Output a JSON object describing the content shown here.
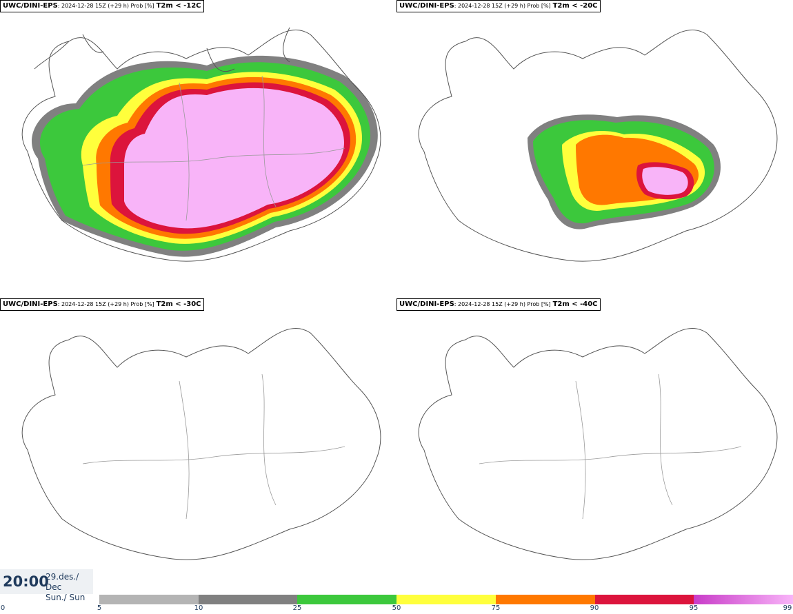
{
  "panels": [
    {
      "model": "UWC/DINI-EPS",
      "meta": ": 2024-12-28 15Z (+29 h) Prob [%]",
      "variable": "T2m < -12C"
    },
    {
      "model": "UWC/DINI-EPS",
      "meta": ": 2024-12-28 15Z (+29 h) Prob [%]",
      "variable": "T2m < -20C"
    },
    {
      "model": "UWC/DINI-EPS",
      "meta": ": 2024-12-28 15Z (+29 h) Prob [%]",
      "variable": "T2m < -30C"
    },
    {
      "model": "UWC/DINI-EPS",
      "meta": ": 2024-12-28 15Z (+29 h) Prob [%]",
      "variable": "T2m < -40C"
    }
  ],
  "valid_time": {
    "time": "20:00",
    "date_line1": "29.des./ Dec",
    "date_line2": "Sun./ Sun"
  },
  "legend": {
    "ticks": [
      "0",
      "5",
      "10",
      "25",
      "50",
      "75",
      "90",
      "95",
      "99"
    ],
    "colors": [
      "#b4b4b4",
      "#808080",
      "#3cc83c",
      "#ffff3c",
      "#ff7800",
      "#dc143c",
      "#c83cc8",
      "#f8b4f8"
    ]
  },
  "map_colors": {
    "outline": "#555555",
    "road": "#9a9a9a",
    "green": "#3cc83c",
    "yellow": "#ffff3c",
    "orange": "#ff7800",
    "red": "#dc143c",
    "magenta": "#c83cc8",
    "pink": "#f8b4f8",
    "grey": "#808080"
  }
}
